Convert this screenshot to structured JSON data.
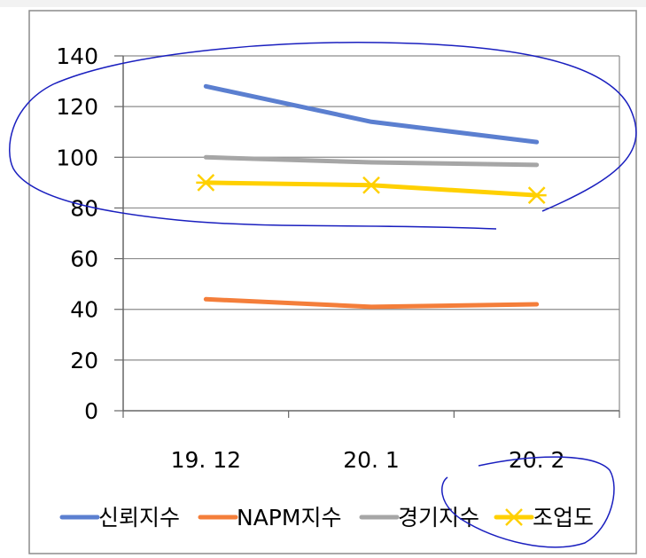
{
  "chart_data": {
    "type": "line",
    "categories": [
      "19. 12",
      "20. 1",
      "20. 2"
    ],
    "ylim": [
      0,
      140
    ],
    "yticks": [
      0,
      20,
      40,
      60,
      80,
      100,
      120,
      140
    ],
    "grid": true,
    "legend_position": "bottom",
    "series": [
      {
        "name": "신뢰지수",
        "values": [
          128,
          114,
          106
        ],
        "color": "#5B7FD0",
        "marker": "none"
      },
      {
        "name": "NAPM지수",
        "values": [
          44,
          41,
          42
        ],
        "color": "#F47E3A",
        "marker": "none"
      },
      {
        "name": "경기지수",
        "values": [
          100,
          98,
          97
        ],
        "color": "#A6A6A6",
        "marker": "none"
      },
      {
        "name": "조업도",
        "values": [
          90,
          89,
          85
        ],
        "color": "#FFD000",
        "marker": "x"
      }
    ],
    "annotation_color": "#1a1fbf"
  }
}
